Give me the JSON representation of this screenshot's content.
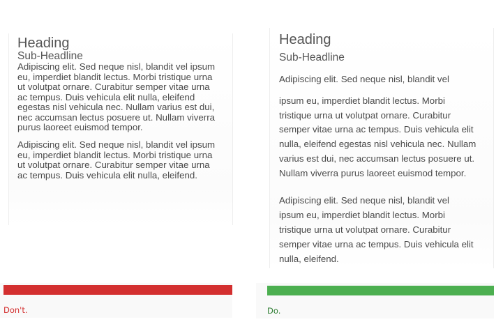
{
  "dont": {
    "heading": "Heading",
    "subheadline": "Sub-Headline",
    "p1": [
      "Adipiscing elit. Sed neque nisl, blandit vel ipsum",
      "eu, imperdiet blandit lectus. Morbi tristique urna",
      "ut volutpat ornare. Curabitur semper vitae urna",
      "ac tempus. Duis vehicula elit nulla, eleifend",
      "egestas nisl vehicula nec. Nullam varius est dui,",
      "nec accumsan lectus posuere ut. Nullam viverra",
      "purus laoreet euismod tempor."
    ],
    "p2": [
      "Adipiscing elit. Sed neque nisl, blandit vel ipsum",
      "eu, imperdiet blandit lectus. Morbi tristique urna",
      "ut volutpat ornare. Curabitur semper vitae urna",
      "ac tempus. Duis vehicula elit nulla, eleifend."
    ],
    "label": "Don't.",
    "color": "#d32f2f"
  },
  "do": {
    "heading": "Heading",
    "subheadline": "Sub-Headline",
    "p1": [
      "Adipiscing elit. Sed neque nisl, blandit vel",
      "ipsum eu, imperdiet blandit lectus. Morbi",
      "tristique urna ut volutpat ornare. Curabitur",
      "semper vitae urna ac tempus. Duis vehicula elit",
      "nulla, eleifend egestas nisl vehicula nec. Nullam",
      "varius est dui, nec accumsan lectus posuere ut.",
      "Nullam viverra purus laoreet euismod tempor."
    ],
    "p2": [
      "Adipiscing elit. Sed neque nisl, blandit vel",
      "ipsum eu, imperdiet blandit lectus. Morbi",
      "tristique urna ut volutpat ornare. Curabitur",
      "semper vitae urna ac tempus. Duis vehicula elit",
      "nulla, eleifend."
    ],
    "label": "Do.",
    "color": "#4caf50",
    "label_color": "#2e7d32"
  }
}
